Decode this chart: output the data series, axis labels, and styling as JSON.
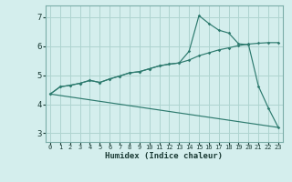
{
  "xlabel": "Humidex (Indice chaleur)",
  "bg_color": "#d4eeed",
  "grid_color": "#aed4d0",
  "line_color": "#2d7a6e",
  "xlim": [
    -0.5,
    23.5
  ],
  "ylim": [
    2.7,
    7.4
  ],
  "xticks": [
    0,
    1,
    2,
    3,
    4,
    5,
    6,
    7,
    8,
    9,
    10,
    11,
    12,
    13,
    14,
    15,
    16,
    17,
    18,
    19,
    20,
    21,
    22,
    23
  ],
  "yticks": [
    3,
    4,
    5,
    6,
    7
  ],
  "line1_x": [
    0,
    1,
    2,
    3,
    4,
    5,
    6,
    7,
    8,
    9,
    10,
    11,
    12,
    13,
    14,
    15,
    16,
    17,
    18,
    19,
    20,
    21,
    22,
    23
  ],
  "line1_y": [
    4.35,
    4.6,
    4.65,
    4.72,
    4.82,
    4.75,
    4.87,
    4.97,
    5.08,
    5.12,
    5.22,
    5.32,
    5.38,
    5.42,
    5.82,
    7.05,
    6.78,
    6.55,
    6.45,
    6.08,
    6.05,
    4.62,
    3.87,
    3.2
  ],
  "line2_x": [
    0,
    1,
    2,
    3,
    4,
    5,
    6,
    7,
    8,
    9,
    10,
    11,
    12,
    13,
    14,
    15,
    16,
    17,
    18,
    19,
    20,
    21,
    22,
    23
  ],
  "line2_y": [
    4.35,
    4.6,
    4.65,
    4.72,
    4.82,
    4.75,
    4.87,
    4.97,
    5.08,
    5.12,
    5.22,
    5.32,
    5.38,
    5.42,
    5.52,
    5.67,
    5.77,
    5.87,
    5.94,
    6.02,
    6.07,
    6.1,
    6.12,
    6.12
  ],
  "line3_x": [
    0,
    23
  ],
  "line3_y": [
    4.35,
    3.2
  ]
}
